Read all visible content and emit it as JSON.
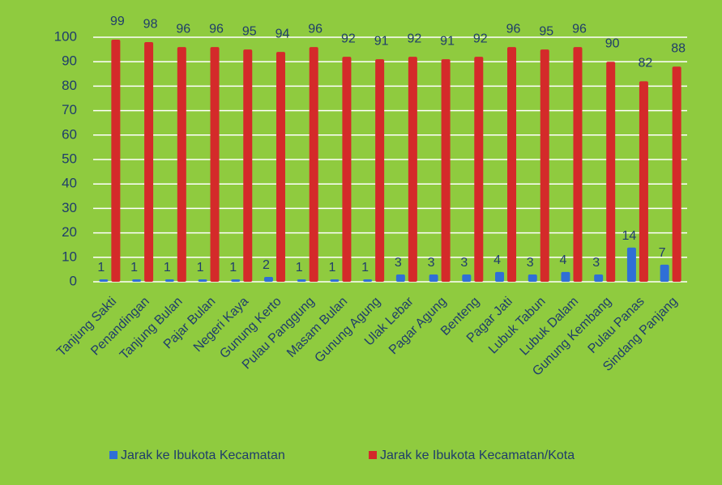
{
  "chart_data": {
    "type": "bar",
    "categories": [
      "Tanjung Sakti",
      "Penandingan",
      "Tanjung Bulan",
      "Pajar Bulan",
      "Negeri Kaya",
      "Gunung Kerto",
      "Pulau Panggung",
      "Masam Bulan",
      "Gunung Agung",
      "Ulak Lebar",
      "Pagar Agung",
      "Benteng",
      "Pagar Jati",
      "Lubuk Tabun",
      "Lubuk Dalam",
      "Gunung Kembang",
      "Pulau Panas",
      "Sindang Panjang"
    ],
    "series": [
      {
        "name": "Jarak ke Ibukota Kecamatan",
        "color": "#2f6fd6",
        "values": [
          1,
          1,
          1,
          1,
          1,
          2,
          1,
          1,
          1,
          3,
          3,
          3,
          4,
          3,
          4,
          3,
          14,
          7
        ]
      },
      {
        "name": "Jarak ke Ibukota Kecamatan/Kota",
        "color": "#d42a2a",
        "values": [
          99,
          98,
          96,
          96,
          95,
          94,
          96,
          92,
          91,
          92,
          91,
          92,
          96,
          95,
          96,
          90,
          82,
          88
        ]
      }
    ],
    "ylim": [
      0,
      100
    ],
    "yticks": [
      0,
      10,
      20,
      30,
      40,
      50,
      60,
      70,
      80,
      90,
      100
    ],
    "grid": true,
    "legend": "bottom"
  }
}
